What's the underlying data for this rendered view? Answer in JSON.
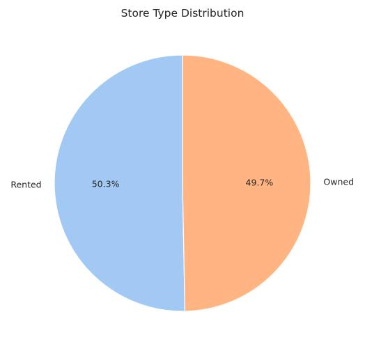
{
  "chart_data": {
    "type": "pie",
    "title": "Store Type Distribution",
    "slices": [
      {
        "label": "Rented",
        "value": 50.3,
        "pct_label": "50.3%",
        "color": "#a1c9f4"
      },
      {
        "label": "Owned",
        "value": 49.7,
        "pct_label": "49.7%",
        "color": "#ffb482"
      }
    ],
    "start_angle_deg": 90,
    "direction": "counterclockwise",
    "edge_color": "#ffffff",
    "legend": "none"
  }
}
